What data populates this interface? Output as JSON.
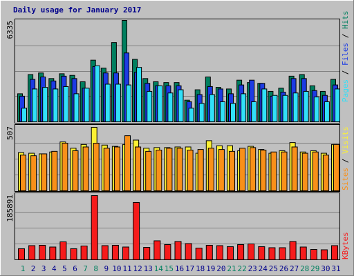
{
  "chart_data": [
    {
      "type": "bar",
      "title": "Daily usage for January 2017",
      "categories": [
        "1",
        "2",
        "3",
        "4",
        "5",
        "6",
        "7",
        "8",
        "9",
        "10",
        "11",
        "12",
        "13",
        "14",
        "15",
        "16",
        "17",
        "18",
        "19",
        "20",
        "21",
        "22",
        "23",
        "24",
        "25",
        "26",
        "27",
        "28",
        "29",
        "30",
        "31"
      ],
      "weekend_days": [
        "1",
        "7",
        "8",
        "14",
        "15",
        "21",
        "22",
        "28",
        "29"
      ],
      "ymax_label": "6335",
      "ylim": [
        0,
        6335
      ],
      "series": [
        {
          "name": "Hits",
          "color": "#007f5f",
          "values": [
            1750,
            2950,
            3050,
            2700,
            3000,
            2900,
            2500,
            3850,
            3350,
            4950,
            6335,
            3900,
            2700,
            2500,
            2450,
            2450,
            1350,
            2000,
            2800,
            2150,
            2050,
            2600,
            2450,
            2400,
            1900,
            2100,
            2850,
            2950,
            2250,
            1900,
            2650
          ]
        },
        {
          "name": "Files",
          "color": "#1c3be3",
          "values": [
            1600,
            2650,
            2800,
            2550,
            2850,
            2700,
            2100,
            3450,
            3050,
            3050,
            4300,
            3100,
            2400,
            2250,
            2250,
            2250,
            1250,
            1700,
            2200,
            2050,
            1750,
            2300,
            2600,
            2400,
            1600,
            1850,
            2700,
            2700,
            1950,
            1650,
            2300
          ]
        },
        {
          "name": "Pages",
          "color": "#31e0f8",
          "values": [
            850,
            2050,
            2150,
            2050,
            2200,
            1750,
            2100,
            3500,
            2350,
            2350,
            2300,
            3400,
            1900,
            2250,
            1800,
            2000,
            850,
            1150,
            1700,
            1250,
            1150,
            1750,
            1250,
            2050,
            1650,
            1650,
            1800,
            1900,
            1550,
            1250,
            2050
          ]
        }
      ]
    },
    {
      "type": "bar",
      "ymax_label": "507",
      "ylim": [
        0,
        507
      ],
      "series": [
        {
          "name": "Visits",
          "color": "#fcf033",
          "values": [
            305,
            300,
            295,
            310,
            390,
            340,
            370,
            507,
            365,
            355,
            370,
            405,
            340,
            345,
            345,
            350,
            350,
            300,
            400,
            360,
            360,
            320,
            355,
            330,
            300,
            320,
            385,
            310,
            320,
            300,
            370
          ]
        },
        {
          "name": "Sites",
          "color": "#f99019",
          "values": [
            285,
            280,
            295,
            315,
            380,
            320,
            350,
            380,
            340,
            350,
            440,
            350,
            315,
            325,
            340,
            340,
            325,
            330,
            340,
            330,
            315,
            340,
            345,
            325,
            310,
            310,
            350,
            300,
            310,
            285,
            370
          ]
        }
      ]
    },
    {
      "type": "bar",
      "ymax_label": "185891",
      "ylim": [
        0,
        185891
      ],
      "series": [
        {
          "name": "KBytes",
          "color": "#f61b1b",
          "values": [
            32000,
            41000,
            42000,
            37000,
            52000,
            32000,
            40000,
            185891,
            41000,
            42000,
            37000,
            166000,
            36000,
            55000,
            44000,
            53000,
            47000,
            34000,
            42000,
            41000,
            38000,
            44000,
            46000,
            38000,
            35000,
            35000,
            53000,
            37000,
            30000,
            29000,
            41000
          ]
        }
      ]
    }
  ]
}
